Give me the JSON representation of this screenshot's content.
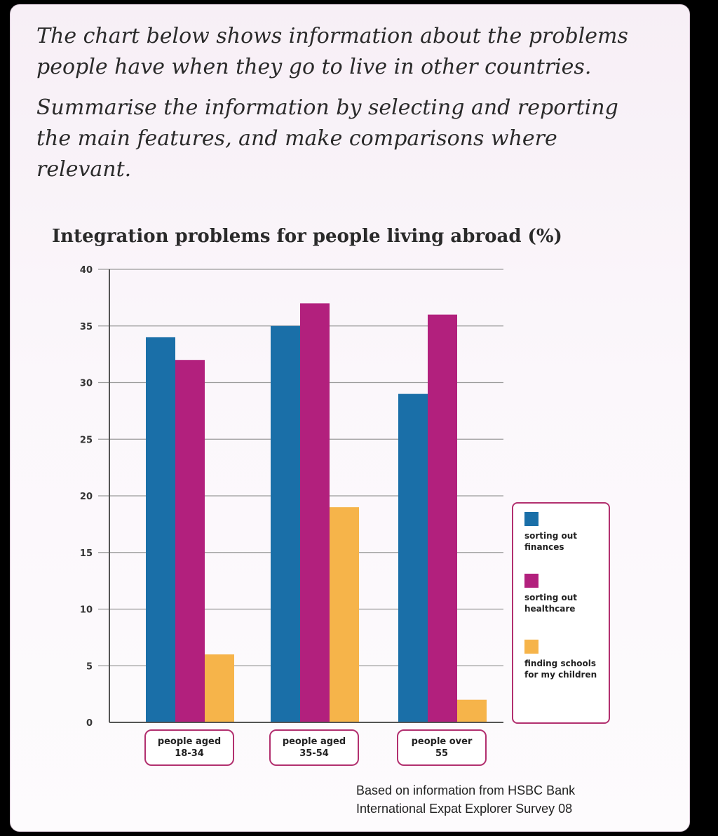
{
  "prompt": {
    "paragraph1": "The chart below shows information about the problems people have when they go to live in other countries.",
    "paragraph2": "Summarise the information by selecting and reporting the main features, and make comparisons where relevant."
  },
  "source_note": "Based on information from HSBC Bank\nInternational Expat Explorer Survey 08",
  "chart_data": {
    "type": "bar",
    "title": "Integration problems for people living abroad (%)",
    "xlabel": "",
    "ylabel": "",
    "categories": [
      "people aged 18-34",
      "people aged 35-54",
      "people over 55"
    ],
    "series": [
      {
        "name": "sorting out finances",
        "color": "#1a6fa8",
        "values": [
          34,
          35,
          29
        ]
      },
      {
        "name": "sorting out healthcare",
        "color": "#b2207d",
        "values": [
          32,
          37,
          36
        ]
      },
      {
        "name": "finding schools for my children",
        "color": "#f6b44a",
        "values": [
          6,
          19,
          2
        ]
      }
    ],
    "ylim": [
      0,
      40
    ],
    "yticks": [
      0,
      5,
      10,
      15,
      20,
      25,
      30,
      35,
      40
    ],
    "grid": true,
    "legend_position": "right"
  }
}
